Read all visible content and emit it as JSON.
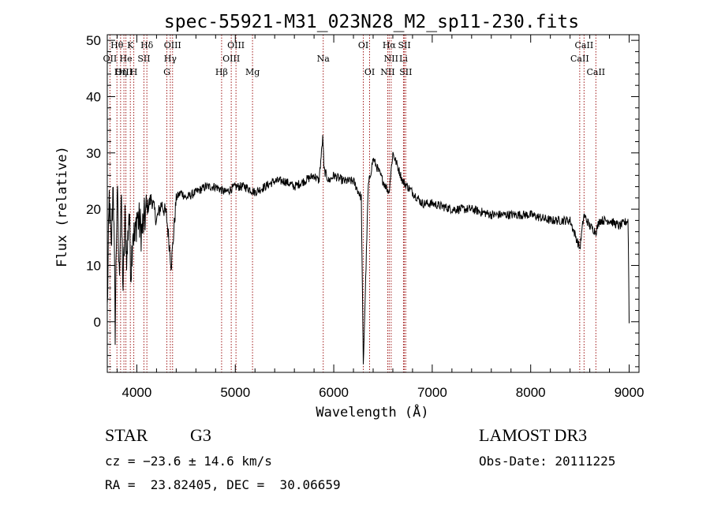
{
  "chart_data": {
    "type": "line",
    "title": "spec-55921-M31_023N28_M2_sp11-230.fits",
    "xlabel": "Wavelength (Å)",
    "ylabel": "Flux (relative)",
    "xlim": [
      3700,
      9100
    ],
    "ylim": [
      -9,
      51
    ],
    "xticks": [
      4000,
      5000,
      6000,
      7000,
      8000,
      9000
    ],
    "yticks": [
      0,
      10,
      20,
      30,
      40,
      50
    ],
    "series": [
      {
        "name": "flux",
        "x": [
          3700,
          3720,
          3740,
          3760,
          3780,
          3800,
          3820,
          3840,
          3860,
          3880,
          3900,
          3920,
          3940,
          3960,
          3980,
          4000,
          4050,
          4100,
          4150,
          4200,
          4250,
          4300,
          4350,
          4400,
          4450,
          4500,
          4600,
          4700,
          4800,
          4900,
          5000,
          5100,
          5200,
          5300,
          5400,
          5500,
          5600,
          5700,
          5800,
          5850,
          5890,
          5900,
          5950,
          6000,
          6100,
          6200,
          6280,
          6300,
          6350,
          6400,
          6500,
          6560,
          6600,
          6700,
          6800,
          6900,
          7000,
          7200,
          7400,
          7600,
          7800,
          8000,
          8200,
          8400,
          8500,
          8540,
          8600,
          8662,
          8700,
          8800,
          8900,
          8990,
          9000
        ],
        "y": [
          2,
          22,
          12,
          26,
          -1,
          24,
          8,
          22,
          6,
          18,
          11,
          20,
          9,
          17,
          14,
          19,
          16,
          20,
          22,
          18,
          21,
          19,
          10,
          22,
          23,
          22,
          23,
          24,
          24,
          23,
          24,
          24,
          23,
          24,
          25,
          25,
          24,
          25,
          26,
          25,
          33,
          27,
          25,
          26,
          25,
          25,
          22,
          -8,
          24,
          29,
          25,
          23,
          30,
          25,
          23,
          21,
          21,
          20,
          20,
          19,
          19,
          19,
          18,
          18,
          13,
          19,
          17,
          16,
          18,
          18,
          17,
          18,
          0
        ]
      }
    ],
    "spectral_lines": [
      {
        "name": "Hθ",
        "wave": 3798,
        "row": 0
      },
      {
        "name": "OII",
        "wave": 3727,
        "row": 1
      },
      {
        "name": "OIII",
        "wave": 3869,
        "row": 2
      },
      {
        "name": "Hη",
        "wave": 3835,
        "row": 2
      },
      {
        "name": "He",
        "wave": 3889,
        "row": 1
      },
      {
        "name": "K",
        "wave": 3934,
        "row": 0
      },
      {
        "name": "SII",
        "wave": 4072,
        "row": 1
      },
      {
        "name": "H",
        "wave": 3969,
        "row": 2
      },
      {
        "name": "Hδ",
        "wave": 4102,
        "row": 0
      },
      {
        "name": "OIII",
        "wave": 4363,
        "row": 0
      },
      {
        "name": "Hγ",
        "wave": 4340,
        "row": 1
      },
      {
        "name": "G",
        "wave": 4305,
        "row": 2
      },
      {
        "name": "Hβ",
        "wave": 4861,
        "row": 2
      },
      {
        "name": "OIII",
        "wave": 5007,
        "row": 0
      },
      {
        "name": "OIII",
        "wave": 4959,
        "row": 1
      },
      {
        "name": "Mg",
        "wave": 5175,
        "row": 2
      },
      {
        "name": "Na",
        "wave": 5893,
        "row": 1
      },
      {
        "name": "OI",
        "wave": 6300,
        "row": 0
      },
      {
        "name": "OI",
        "wave": 6364,
        "row": 2
      },
      {
        "name": "Hα",
        "wave": 6563,
        "row": 0
      },
      {
        "name": "SII",
        "wave": 6717,
        "row": 0
      },
      {
        "name": "NII",
        "wave": 6583,
        "row": 1
      },
      {
        "name": "Li",
        "wave": 6708,
        "row": 1
      },
      {
        "name": "NII",
        "wave": 6548,
        "row": 2
      },
      {
        "name": "SII",
        "wave": 6731,
        "row": 2
      },
      {
        "name": "CaII",
        "wave": 8542,
        "row": 0
      },
      {
        "name": "CaII",
        "wave": 8498,
        "row": 1
      },
      {
        "name": "CaII",
        "wave": 8662,
        "row": 2
      }
    ]
  },
  "info": {
    "class": "STAR",
    "subclass": "G3",
    "survey": "LAMOST DR3",
    "cz": "cz = −23.6 ± 14.6 km/s",
    "obs_date": "Obs-Date: 20111225",
    "coords": "RA =  23.82405, DEC =  30.06659"
  },
  "colors": {
    "line_marker": "#a01818",
    "spectrum": "#000000"
  }
}
